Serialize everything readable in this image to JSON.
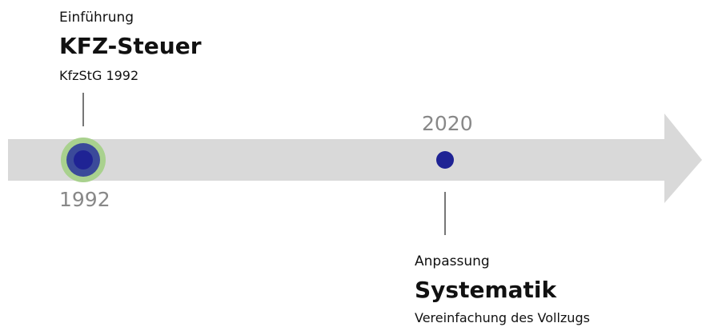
{
  "events": [
    {
      "year": "1992",
      "kicker": "Einführung",
      "title": "KFZ-Steuer",
      "detail": "KfzStG 1992"
    },
    {
      "year": "2020",
      "kicker": "Anpassung",
      "title": "Systematik",
      "detail": "Vereinfachung des Vollzugs"
    }
  ]
}
